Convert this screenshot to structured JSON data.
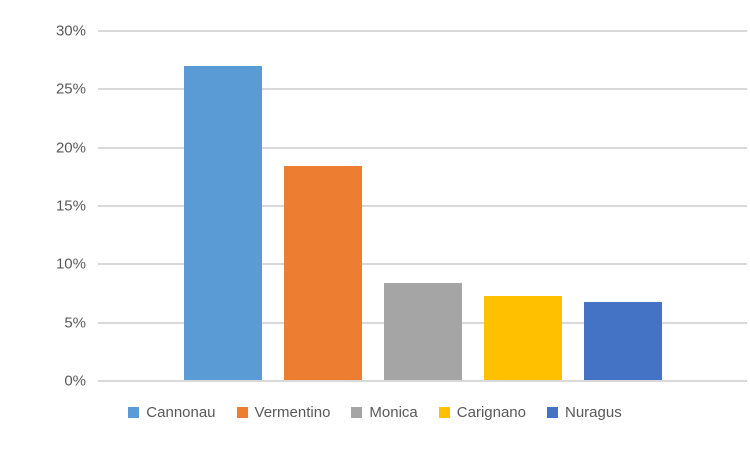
{
  "chart_data": {
    "type": "bar",
    "title": "",
    "xlabel": "",
    "ylabel": "",
    "categories": [
      "Cannonau",
      "Vermentino",
      "Monica",
      "Carignano",
      "Nuragus"
    ],
    "values": [
      27,
      18.4,
      8.3,
      7.2,
      6.7
    ],
    "unit": "%",
    "ylim": [
      0,
      30
    ],
    "ytick_step": 5,
    "ytick_values": [
      0,
      5,
      10,
      15,
      20,
      25,
      30
    ],
    "ytick_labels": [
      "0%",
      "5%",
      "10%",
      "15%",
      "20%",
      "25%",
      "30%"
    ],
    "grid": true,
    "legend_position": "bottom",
    "colors": [
      "#5B9BD5",
      "#ED7D31",
      "#A5A5A5",
      "#FFC000",
      "#4472C4"
    ],
    "gridline_color": "#D9D9D9",
    "axis_text_color": "#595959",
    "background_color": "#FFFFFF"
  }
}
